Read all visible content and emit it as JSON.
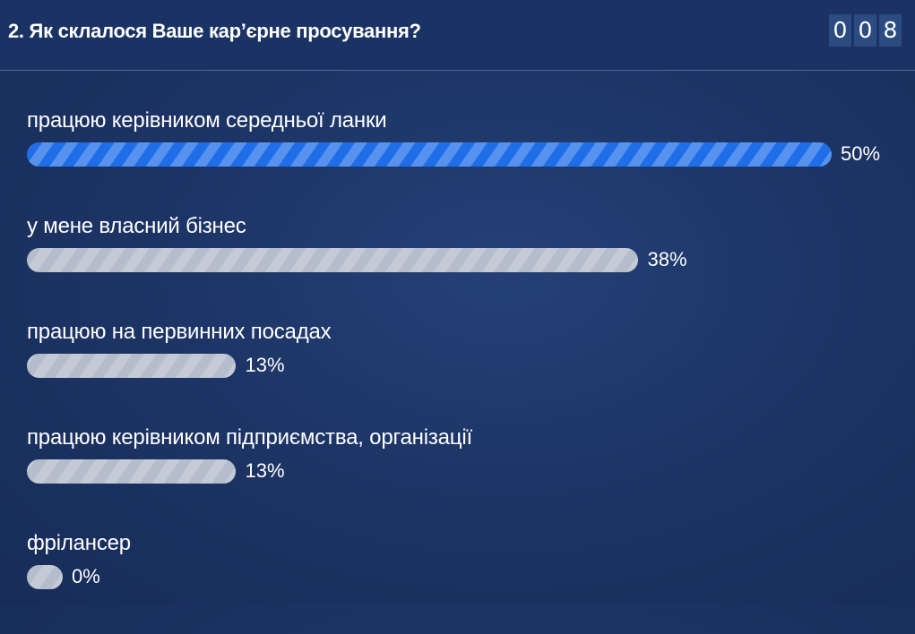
{
  "question": {
    "title": "2. Як склалося Ваше кар’єрне просування?"
  },
  "counter": {
    "digits": [
      "0",
      "0",
      "8"
    ]
  },
  "colors": {
    "selected_bar": "#1f6ee8",
    "default_bar": "#b5bccb",
    "background": "#1d3566"
  },
  "options": [
    {
      "label": "працюю керівником середньої ланки",
      "percent_text": "50%",
      "value": 50,
      "selected": true
    },
    {
      "label": "у мене власний бізнес",
      "percent_text": "38%",
      "value": 38,
      "selected": false
    },
    {
      "label": "працюю на первинних посадах",
      "percent_text": "13%",
      "value": 13,
      "selected": false
    },
    {
      "label": "працюю керівником підприємства, організації",
      "percent_text": "13%",
      "value": 13,
      "selected": false
    },
    {
      "label": "фрілансер",
      "percent_text": "0%",
      "value": 0,
      "selected": false
    }
  ]
}
